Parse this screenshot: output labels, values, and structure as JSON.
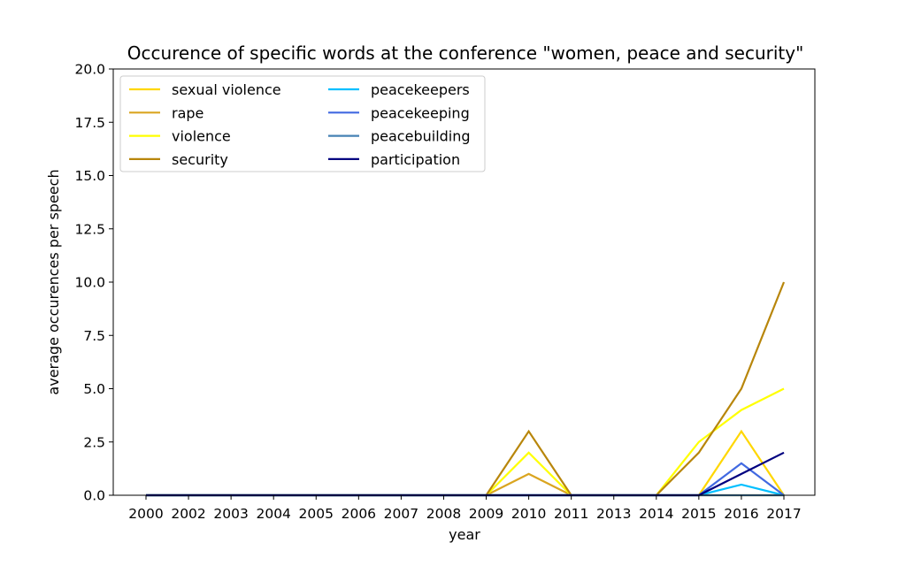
{
  "chart_data": {
    "type": "line",
    "title": "Occurence of specific words at the conference \"women, peace and security\"",
    "xlabel": "year",
    "ylabel": "average occurences per speech",
    "categories": [
      "2000",
      "2002",
      "2003",
      "2004",
      "2005",
      "2006",
      "2007",
      "2008",
      "2009",
      "2010",
      "2011",
      "2013",
      "2014",
      "2015",
      "2016",
      "2017"
    ],
    "ylim": [
      0,
      20
    ],
    "yticks": [
      "0.0",
      "2.5",
      "5.0",
      "7.5",
      "10.0",
      "12.5",
      "15.0",
      "17.5",
      "20.0"
    ],
    "grid": false,
    "legend_position": "top-left",
    "series": [
      {
        "name": "sexual violence",
        "color": "#ffd700",
        "values": [
          0,
          0,
          0,
          0,
          0,
          0,
          0,
          0,
          0,
          0,
          0,
          0,
          0,
          0,
          3,
          0
        ]
      },
      {
        "name": "rape",
        "color": "#daa520",
        "values": [
          0,
          0,
          0,
          0,
          0,
          0,
          0,
          0,
          0,
          1,
          0,
          0,
          0,
          0,
          0,
          0
        ]
      },
      {
        "name": "violence",
        "color": "#ffff00",
        "values": [
          0,
          0,
          0,
          0,
          0,
          0,
          0,
          0,
          0,
          2,
          0,
          0,
          0,
          2.5,
          4,
          5
        ]
      },
      {
        "name": "security",
        "color": "#b8860b",
        "values": [
          0,
          0,
          0,
          0,
          0,
          0,
          0,
          0,
          0,
          3,
          0,
          0,
          0,
          2,
          5,
          10
        ]
      },
      {
        "name": "peacekeepers",
        "color": "#00bfff",
        "values": [
          0,
          0,
          0,
          0,
          0,
          0,
          0,
          0,
          0,
          0,
          0,
          0,
          0,
          0,
          0.5,
          0
        ]
      },
      {
        "name": "peacekeeping",
        "color": "#4169e1",
        "values": [
          0,
          0,
          0,
          0,
          0,
          0,
          0,
          0,
          0,
          0,
          0,
          0,
          0,
          0,
          1.5,
          0
        ]
      },
      {
        "name": "peacebuilding",
        "color": "#4682b4",
        "values": [
          0,
          0,
          0,
          0,
          0,
          0,
          0,
          0,
          0,
          0,
          0,
          0,
          0,
          0,
          0,
          0
        ]
      },
      {
        "name": "participation",
        "color": "#000080",
        "values": [
          0,
          0,
          0,
          0,
          0,
          0,
          0,
          0,
          0,
          0,
          0,
          0,
          0,
          0,
          1,
          2
        ]
      }
    ]
  }
}
